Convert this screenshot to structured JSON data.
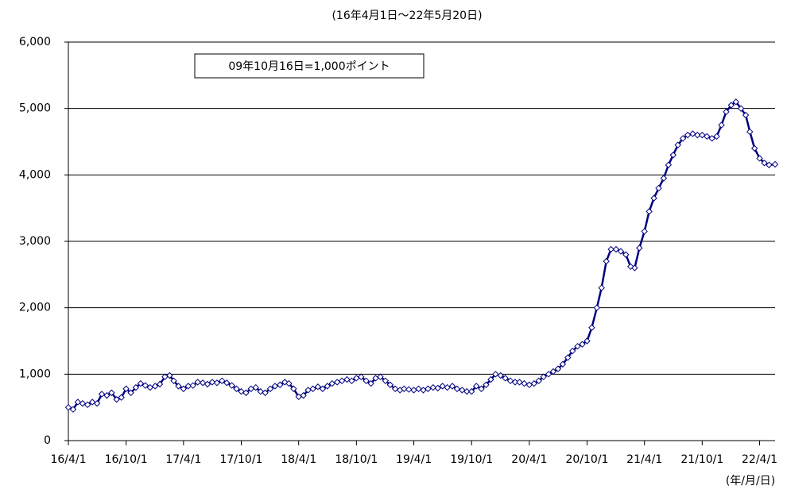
{
  "chart_data": {
    "type": "line",
    "subtitle": "(16年4月1日～22年5月20日)",
    "annotation": "09年10月16日=1,000ポイント",
    "x_label": "(年/月/日)",
    "xlim": [
      "2016-04-01",
      "2022-05-20"
    ],
    "xticks": [
      {
        "value": "2016-04-01",
        "label": "16/4/1"
      },
      {
        "value": "2016-10-01",
        "label": "16/10/1"
      },
      {
        "value": "2017-04-01",
        "label": "17/4/1"
      },
      {
        "value": "2017-10-01",
        "label": "17/10/1"
      },
      {
        "value": "2018-04-01",
        "label": "18/4/1"
      },
      {
        "value": "2018-10-01",
        "label": "18/10/1"
      },
      {
        "value": "2019-04-01",
        "label": "19/4/1"
      },
      {
        "value": "2019-10-01",
        "label": "19/10/1"
      },
      {
        "value": "2020-04-01",
        "label": "20/4/1"
      },
      {
        "value": "2020-10-01",
        "label": "20/10/1"
      },
      {
        "value": "2021-04-01",
        "label": "21/4/1"
      },
      {
        "value": "2021-10-01",
        "label": "21/10/1"
      },
      {
        "value": "2022-04-01",
        "label": "22/4/1"
      }
    ],
    "ylim": [
      0,
      6000
    ],
    "yticks": [
      0,
      {
        "value": 1000,
        "label": "1,000"
      },
      {
        "value": 2000,
        "label": "2,000"
      },
      {
        "value": 3000,
        "label": "3,000"
      },
      {
        "value": 4000,
        "label": "4,000"
      },
      {
        "value": 5000,
        "label": "5,000"
      },
      {
        "value": 6000,
        "label": "6,000"
      }
    ],
    "grid": true,
    "x": [
      "2016-04-01",
      "2016-04-16",
      "2016-05-01",
      "2016-05-16",
      "2016-06-01",
      "2016-06-16",
      "2016-07-01",
      "2016-07-16",
      "2016-08-01",
      "2016-08-16",
      "2016-09-01",
      "2016-09-16",
      "2016-10-01",
      "2016-10-16",
      "2016-11-01",
      "2016-11-16",
      "2016-12-01",
      "2016-12-16",
      "2017-01-01",
      "2017-01-16",
      "2017-02-01",
      "2017-02-16",
      "2017-03-01",
      "2017-03-16",
      "2017-04-01",
      "2017-04-16",
      "2017-05-01",
      "2017-05-16",
      "2017-06-01",
      "2017-06-16",
      "2017-07-01",
      "2017-07-16",
      "2017-08-01",
      "2017-08-16",
      "2017-09-01",
      "2017-09-16",
      "2017-10-01",
      "2017-10-16",
      "2017-11-01",
      "2017-11-16",
      "2017-12-01",
      "2017-12-16",
      "2018-01-01",
      "2018-01-16",
      "2018-02-01",
      "2018-02-16",
      "2018-03-01",
      "2018-03-16",
      "2018-04-01",
      "2018-04-16",
      "2018-05-01",
      "2018-05-16",
      "2018-06-01",
      "2018-06-16",
      "2018-07-01",
      "2018-07-16",
      "2018-08-01",
      "2018-08-16",
      "2018-09-01",
      "2018-09-16",
      "2018-10-01",
      "2018-10-16",
      "2018-11-01",
      "2018-11-16",
      "2018-12-01",
      "2018-12-16",
      "2019-01-01",
      "2019-01-16",
      "2019-02-01",
      "2019-02-16",
      "2019-03-01",
      "2019-03-16",
      "2019-04-01",
      "2019-04-16",
      "2019-05-01",
      "2019-05-16",
      "2019-06-01",
      "2019-06-16",
      "2019-07-01",
      "2019-07-16",
      "2019-08-01",
      "2019-08-16",
      "2019-09-01",
      "2019-09-16",
      "2019-10-01",
      "2019-10-16",
      "2019-11-01",
      "2019-11-16",
      "2019-12-01",
      "2019-12-16",
      "2020-01-01",
      "2020-01-16",
      "2020-02-01",
      "2020-02-16",
      "2020-03-01",
      "2020-03-16",
      "2020-04-01",
      "2020-04-16",
      "2020-05-01",
      "2020-05-16",
      "2020-06-01",
      "2020-06-16",
      "2020-07-01",
      "2020-07-16",
      "2020-08-01",
      "2020-08-16",
      "2020-09-01",
      "2020-09-16",
      "2020-10-01",
      "2020-10-16",
      "2020-11-01",
      "2020-11-16",
      "2020-12-01",
      "2020-12-16",
      "2021-01-01",
      "2021-01-16",
      "2021-02-01",
      "2021-02-16",
      "2021-03-01",
      "2021-03-16",
      "2021-04-01",
      "2021-04-16",
      "2021-05-01",
      "2021-05-16",
      "2021-06-01",
      "2021-06-16",
      "2021-07-01",
      "2021-07-16",
      "2021-08-01",
      "2021-08-16",
      "2021-09-01",
      "2021-09-16",
      "2021-10-01",
      "2021-10-16",
      "2021-11-01",
      "2021-11-16",
      "2021-12-01",
      "2021-12-16",
      "2022-01-01",
      "2022-01-16",
      "2022-02-01",
      "2022-02-16",
      "2022-03-01",
      "2022-03-16",
      "2022-04-01",
      "2022-04-16",
      "2022-05-01",
      "2022-05-20"
    ],
    "series": [
      {
        "color": "#000080",
        "values": [
          500,
          470,
          580,
          560,
          540,
          580,
          560,
          700,
          680,
          720,
          620,
          650,
          780,
          720,
          800,
          860,
          830,
          800,
          820,
          850,
          960,
          980,
          900,
          820,
          780,
          820,
          830,
          880,
          870,
          850,
          880,
          870,
          900,
          870,
          830,
          780,
          740,
          720,
          780,
          800,
          740,
          720,
          780,
          820,
          840,
          880,
          860,
          780,
          660,
          680,
          760,
          780,
          810,
          780,
          820,
          860,
          880,
          900,
          920,
          900,
          940,
          960,
          900,
          860,
          940,
          960,
          900,
          840,
          780,
          760,
          780,
          770,
          760,
          780,
          760,
          780,
          800,
          790,
          820,
          800,
          820,
          780,
          760,
          740,
          740,
          820,
          780,
          840,
          920,
          1000,
          980,
          940,
          900,
          880,
          880,
          860,
          840,
          860,
          900,
          960,
          1000,
          1040,
          1080,
          1150,
          1250,
          1350,
          1420,
          1450,
          1500,
          1700,
          2000,
          2300,
          2700,
          2880,
          2880,
          2850,
          2800,
          2620,
          2600,
          2900,
          3150,
          3450,
          3650,
          3800,
          3950,
          4150,
          4300,
          4450,
          4550,
          4600,
          4620,
          4600,
          4600,
          4580,
          4550,
          4580,
          4750,
          4950,
          5050,
          5100,
          5000,
          4900,
          4650,
          4400,
          4250,
          4180,
          4150,
          4160
        ]
      }
    ]
  }
}
